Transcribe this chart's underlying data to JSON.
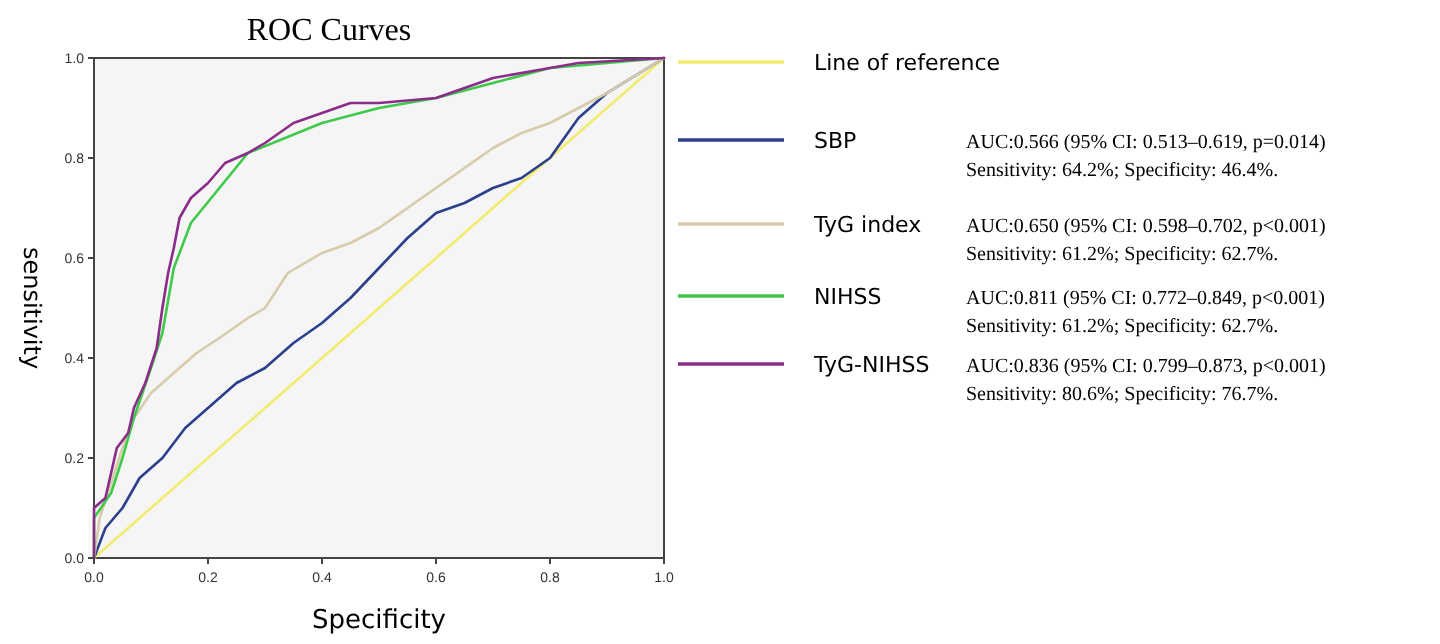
{
  "chart_data": {
    "type": "line",
    "title": "ROC  Curves",
    "xlabel": "Specificity",
    "ylabel": "sensitivity",
    "xlim": [
      0,
      1
    ],
    "ylim": [
      0,
      1
    ],
    "xticks": [
      {
        "value": 0,
        "label": "0.0"
      },
      0.2,
      0.4,
      0.6,
      0.8,
      {
        "value": 1,
        "label": "1.0"
      }
    ],
    "yticks": [
      {
        "value": 0,
        "label": "0.0"
      },
      0.2,
      0.4,
      0.6,
      0.8,
      {
        "value": 1,
        "label": "1.0"
      }
    ],
    "grid": false,
    "legend": "right",
    "line_style": "solid",
    "series": [
      {
        "name": "Line of reference",
        "color": "#f2ec6e",
        "x": [
          0,
          1
        ],
        "values": [
          0,
          1
        ]
      },
      {
        "name": "SBP",
        "color": "#2b3f8c",
        "x": [
          0,
          0.02,
          0.05,
          0.08,
          0.12,
          0.16,
          0.2,
          0.25,
          0.3,
          0.35,
          0.4,
          0.45,
          0.5,
          0.55,
          0.6,
          0.65,
          0.7,
          0.75,
          0.8,
          0.85,
          0.9,
          1
        ],
        "values": [
          0,
          0.06,
          0.1,
          0.16,
          0.2,
          0.26,
          0.3,
          0.35,
          0.38,
          0.43,
          0.47,
          0.52,
          0.58,
          0.64,
          0.69,
          0.71,
          0.74,
          0.76,
          0.8,
          0.88,
          0.93,
          1
        ]
      },
      {
        "name": "TyG index",
        "color": "#d6ccab",
        "x": [
          0,
          0.01,
          0.03,
          0.05,
          0.07,
          0.1,
          0.14,
          0.18,
          0.22,
          0.27,
          0.3,
          0.34,
          0.4,
          0.45,
          0.5,
          0.55,
          0.6,
          0.65,
          0.7,
          0.75,
          0.8,
          0.9,
          1
        ],
        "values": [
          0,
          0.08,
          0.15,
          0.22,
          0.28,
          0.33,
          0.37,
          0.41,
          0.44,
          0.48,
          0.5,
          0.57,
          0.61,
          0.63,
          0.66,
          0.7,
          0.74,
          0.78,
          0.82,
          0.85,
          0.87,
          0.93,
          1
        ]
      },
      {
        "name": "NIHSS",
        "color": "#3ec94a",
        "x": [
          0,
          0,
          0.03,
          0.05,
          0.07,
          0.1,
          0.12,
          0.14,
          0.17,
          0.27,
          0.4,
          0.5,
          0.6,
          0.7,
          0.8,
          1
        ],
        "values": [
          0,
          0.08,
          0.13,
          0.2,
          0.28,
          0.38,
          0.45,
          0.58,
          0.67,
          0.81,
          0.87,
          0.9,
          0.92,
          0.95,
          0.98,
          1
        ]
      },
      {
        "name": "TyG-NIHSS",
        "color": "#8b2c8a",
        "x": [
          0,
          0,
          0.02,
          0.03,
          0.04,
          0.06,
          0.07,
          0.09,
          0.11,
          0.12,
          0.13,
          0.14,
          0.15,
          0.17,
          0.2,
          0.23,
          0.27,
          0.3,
          0.35,
          0.4,
          0.45,
          0.5,
          0.6,
          0.65,
          0.7,
          0.8,
          0.85,
          1
        ],
        "values": [
          0,
          0.1,
          0.12,
          0.17,
          0.22,
          0.25,
          0.3,
          0.35,
          0.42,
          0.5,
          0.57,
          0.62,
          0.68,
          0.72,
          0.75,
          0.79,
          0.81,
          0.83,
          0.87,
          0.89,
          0.91,
          0.91,
          0.92,
          0.94,
          0.96,
          0.98,
          0.99,
          1
        ]
      }
    ],
    "annotations": [
      "AUC:0.566 (95% CI: 0.513–0.619, p=0.014)",
      "Sensitivity: 64.2%; Specificity: 46.4%.",
      "AUC:0.650 (95% CI: 0.598–0.702, p<0.001)",
      "Sensitivity: 61.2%; Specificity: 62.7%.",
      "AUC:0.811 (95% CI: 0.772–0.849, p<0.001)",
      "Sensitivity: 61.2%; Specificity: 62.7%.",
      "AUC:0.836  (95% CI: 0.799–0.873, p<0.001)",
      "Sensitivity: 80.6%; Specificity: 76.7%."
    ]
  }
}
